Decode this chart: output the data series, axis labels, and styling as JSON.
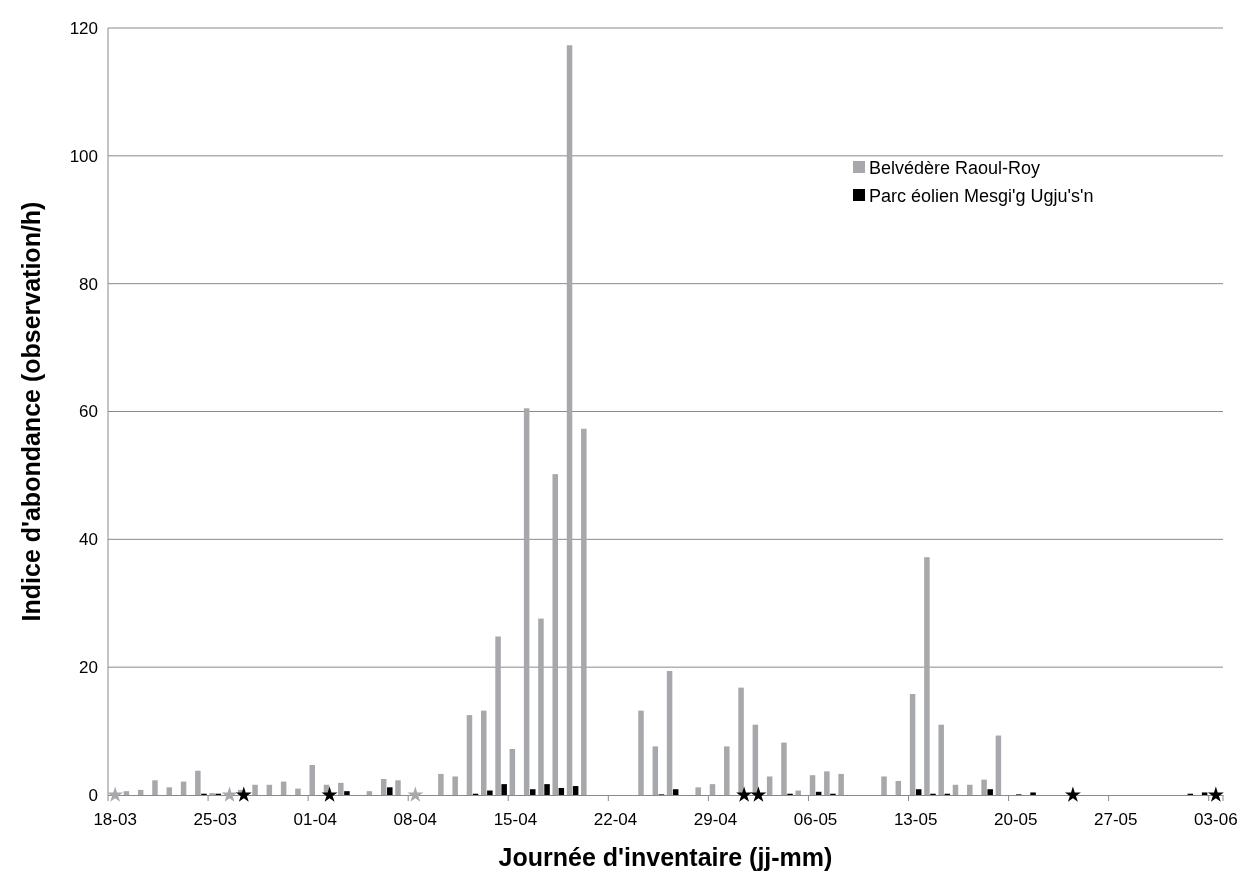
{
  "chart_data": {
    "type": "bar",
    "xlabel": "Journée d'inventaire (jj-mm)",
    "ylabel": "Indice d'abondance (observation/h)",
    "categories": [
      "18-03",
      null,
      null,
      null,
      null,
      null,
      null,
      "25-03",
      null,
      null,
      null,
      null,
      null,
      null,
      "01-04",
      null,
      null,
      null,
      null,
      null,
      null,
      "08-04",
      null,
      null,
      null,
      null,
      null,
      null,
      "15-04",
      null,
      null,
      null,
      null,
      null,
      null,
      "22-04",
      null,
      null,
      null,
      null,
      null,
      null,
      "29-04",
      null,
      null,
      null,
      null,
      null,
      null,
      "06-05",
      null,
      null,
      null,
      null,
      null,
      null,
      "13-05",
      null,
      null,
      null,
      null,
      null,
      null,
      "20-05",
      null,
      null,
      null,
      null,
      null,
      null,
      "27-05",
      null,
      null,
      null,
      null,
      null,
      null,
      "03-06"
    ],
    "series": [
      {
        "name": "Belvédère Raoul-Roy",
        "color": "#a6a8ab",
        "values": [
          null,
          0.6,
          0.8,
          2.3,
          1.2,
          2.1,
          3.8,
          0.3,
          null,
          0.8,
          1.6,
          1.6,
          2.1,
          1.0,
          4.7,
          1.6,
          1.9,
          null,
          0.6,
          2.5,
          2.3,
          null,
          null,
          3.3,
          2.9,
          12.5,
          13.2,
          24.8,
          7.2,
          60.5,
          27.6,
          50.2,
          117.3,
          57.3,
          null,
          null,
          null,
          13.2,
          7.6,
          19.4,
          null,
          1.2,
          1.7,
          7.6,
          16.8,
          11.0,
          2.9,
          8.2,
          0.7,
          3.1,
          3.7,
          3.3,
          null,
          null,
          2.9,
          2.2,
          15.8,
          37.2,
          11.0,
          1.6,
          1.6,
          2.4,
          9.3,
          null,
          null,
          null,
          null,
          null,
          null,
          null,
          null,
          null,
          null,
          null,
          null,
          null,
          null,
          null
        ]
      },
      {
        "name": "Parc éolien Mesgi'g Ugju's'n",
        "color": "#000000",
        "values": [
          null,
          null,
          null,
          null,
          null,
          null,
          0.2,
          0.2,
          null,
          null,
          null,
          null,
          null,
          null,
          null,
          null,
          0.6,
          null,
          null,
          1.2,
          null,
          null,
          null,
          null,
          null,
          0.2,
          0.7,
          1.7,
          null,
          0.9,
          1.7,
          1.1,
          1.4,
          null,
          null,
          null,
          null,
          null,
          0.1,
          0.9,
          null,
          null,
          null,
          null,
          null,
          null,
          null,
          0.2,
          null,
          0.5,
          0.2,
          null,
          null,
          null,
          null,
          null,
          0.9,
          0.2,
          0.2,
          null,
          null,
          0.9,
          null,
          0.1,
          0.4,
          null,
          null,
          null,
          null,
          null,
          null,
          null,
          null,
          null,
          null,
          0.2,
          0.4,
          null
        ]
      },
      {
        "type": "scatter",
        "marker": "star",
        "color": "#a6a8ab",
        "values": [
          0,
          null,
          null,
          null,
          null,
          null,
          null,
          null,
          0,
          null,
          null,
          null,
          null,
          null,
          null,
          null,
          null,
          null,
          null,
          null,
          null,
          0,
          null,
          null,
          null,
          null,
          null,
          null,
          null,
          null,
          null,
          null,
          null,
          null,
          null,
          null,
          null,
          null,
          null,
          null,
          null,
          null,
          null,
          null,
          null,
          null,
          null,
          null,
          null,
          null,
          null,
          null,
          null,
          null,
          null,
          null,
          null,
          null,
          null,
          null,
          null,
          null,
          null,
          null,
          null,
          null,
          null,
          null,
          null,
          null,
          null,
          null,
          null,
          null,
          null,
          null,
          null,
          null
        ]
      },
      {
        "type": "scatter",
        "marker": "star",
        "color": "#000000",
        "values": [
          null,
          null,
          null,
          null,
          null,
          null,
          null,
          null,
          null,
          0,
          null,
          null,
          null,
          null,
          null,
          0,
          null,
          null,
          null,
          null,
          null,
          null,
          null,
          null,
          null,
          null,
          null,
          null,
          null,
          null,
          null,
          null,
          null,
          null,
          null,
          null,
          null,
          null,
          null,
          null,
          null,
          null,
          null,
          null,
          0,
          0,
          null,
          null,
          null,
          null,
          null,
          null,
          null,
          null,
          null,
          null,
          null,
          null,
          null,
          null,
          null,
          null,
          null,
          null,
          null,
          null,
          null,
          0,
          null,
          null,
          null,
          null,
          null,
          null,
          null,
          null,
          null,
          0
        ]
      }
    ],
    "ylim": [
      0,
      120
    ],
    "yticks": [
      0,
      20,
      40,
      60,
      80,
      100,
      120
    ],
    "grid": "y",
    "legend": "top right"
  }
}
